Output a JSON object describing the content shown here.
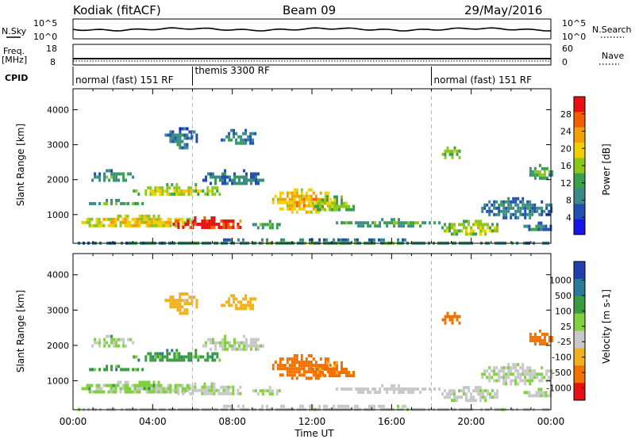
{
  "header": {
    "station": "Kodiak (fitACF)",
    "beam": "Beam 09",
    "date": "29/May/2016"
  },
  "top_panels": {
    "nsky_label": "N.Sky",
    "nsky_ticks": [
      "10^5",
      "10^0"
    ],
    "nsearch_label": "N.Search",
    "nsearch_ticks": [
      "10^5",
      "10^0"
    ],
    "freq_label_1": "Freq.",
    "freq_label_2": "[MHz]",
    "freq_ticks": [
      "18",
      "8"
    ],
    "nave_label": "Nave",
    "nave_ticks": [
      "60",
      "0"
    ],
    "cpid_label": "CPID",
    "modes": [
      {
        "label": "normal (fast) 151 RF",
        "start_h": 0
      },
      {
        "label": "themis 3300 RF",
        "start_h": 6
      },
      {
        "label": "normal (fast) 151 RF",
        "start_h": 18
      }
    ]
  },
  "axes": {
    "xlabel": "Time UT",
    "ylabel": "Slant Range [km]",
    "x_ticks": [
      "00:00",
      "04:00",
      "08:00",
      "12:00",
      "16:00",
      "20:00",
      "00:00"
    ],
    "x_tick_hours": [
      0,
      4,
      8,
      12,
      16,
      20,
      24
    ],
    "y_ticks": [
      "1000",
      "2000",
      "3000",
      "4000"
    ],
    "y_tick_values": [
      1000,
      2000,
      3000,
      4000
    ]
  },
  "power_colorbar": {
    "label": "Power [dB]",
    "ticks": [
      "4",
      "8",
      "12",
      "16",
      "20",
      "24",
      "28"
    ],
    "colors": [
      "#1515e8",
      "#2050b0",
      "#3a8a8a",
      "#3aa050",
      "#8cc818",
      "#f0d000",
      "#f0a000",
      "#f06000",
      "#e81010"
    ]
  },
  "velocity_colorbar": {
    "label": "Velocity [m s-1]",
    "ticks": [
      "1000",
      "500",
      "100",
      "25",
      "-25",
      "-100",
      "-500",
      "-1000"
    ],
    "colors": [
      "#2040b0",
      "#2a7a9a",
      "#3a9a40",
      "#80d040",
      "#c8c8c8",
      "#f0b020",
      "#f07000",
      "#e81010"
    ]
  },
  "chart_data": {
    "type": "heatmap",
    "title": "Kodiak (fitACF) Beam 09 29/May/2016",
    "xlabel": "Time UT",
    "ylabel": "Slant Range [km]",
    "xlim_hours": [
      0,
      24
    ],
    "ylim_km": [
      180,
      4600
    ],
    "series": [
      {
        "name": "Power",
        "unit": "dB",
        "clim": [
          0,
          30
        ]
      },
      {
        "name": "Velocity",
        "unit": "m s-1",
        "clim": [
          -1000,
          1000
        ]
      }
    ],
    "patches": [
      {
        "t0": 0.3,
        "t1": 6.0,
        "r0": 650,
        "r1": 1000,
        "p": 16,
        "v": 30
      },
      {
        "t0": 5.0,
        "t1": 8.5,
        "r0": 600,
        "r1": 950,
        "p": 26,
        "v": 20
      },
      {
        "t0": 0.8,
        "t1": 3.5,
        "r0": 1300,
        "r1": 1450,
        "p": 10,
        "v": 80
      },
      {
        "t0": 3.0,
        "t1": 7.5,
        "r0": 1550,
        "r1": 1900,
        "p": 14,
        "v": 80
      },
      {
        "t0": 0.8,
        "t1": 3.0,
        "r0": 1950,
        "r1": 2300,
        "p": 8,
        "v": 30
      },
      {
        "t0": 4.6,
        "t1": 6.2,
        "r0": 2950,
        "r1": 3500,
        "p": 6,
        "v": -60
      },
      {
        "t0": 7.3,
        "t1": 9.2,
        "r0": 3000,
        "r1": 3450,
        "p": 6,
        "v": -60
      },
      {
        "t0": 9.0,
        "t1": 10.5,
        "r0": 650,
        "r1": 850,
        "p": 10,
        "v": 20
      },
      {
        "t0": 10.0,
        "t1": 13.2,
        "r0": 1100,
        "r1": 1750,
        "p": 18,
        "v": -250
      },
      {
        "t0": 12.0,
        "t1": 14.2,
        "r0": 1100,
        "r1": 1550,
        "p": 12,
        "v": -150
      },
      {
        "t0": 6.5,
        "t1": 9.5,
        "r0": 1850,
        "r1": 2300,
        "p": 6,
        "v": 20
      },
      {
        "t0": 13.2,
        "t1": 18.5,
        "r0": 700,
        "r1": 900,
        "p": 10,
        "v": 10
      },
      {
        "t0": 18.5,
        "t1": 21.5,
        "r0": 450,
        "r1": 850,
        "p": 14,
        "v": 15
      },
      {
        "t0": 18.4,
        "t1": 19.5,
        "r0": 2600,
        "r1": 2950,
        "p": 12,
        "v": -300
      },
      {
        "t0": 20.5,
        "t1": 24.0,
        "r0": 900,
        "r1": 1500,
        "p": 6,
        "v": 20
      },
      {
        "t0": 22.5,
        "t1": 24.0,
        "r0": 550,
        "r1": 800,
        "p": 6,
        "v": 20
      },
      {
        "t0": 22.8,
        "t1": 24.0,
        "r0": 2000,
        "r1": 2450,
        "p": 10,
        "v": -200
      },
      {
        "t0": 0.0,
        "t1": 24.0,
        "r0": 180,
        "r1": 320,
        "p": 8,
        "v": 10
      }
    ]
  }
}
